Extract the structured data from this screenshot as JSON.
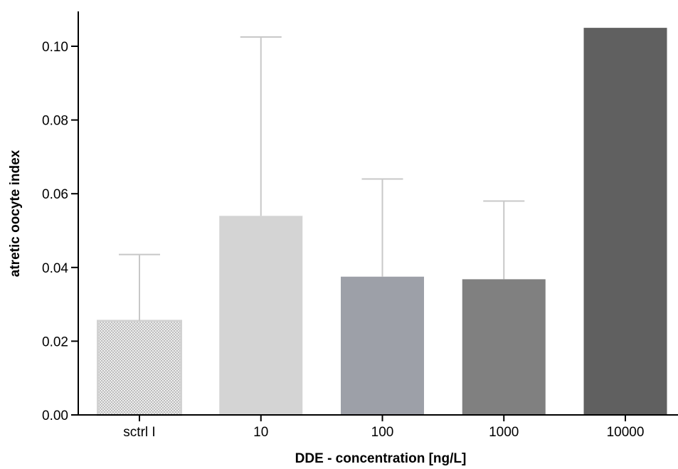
{
  "chart_data": {
    "type": "bar",
    "title": "",
    "xlabel": "DDE - concentration [ng/L]",
    "ylabel": "atretic oocyte index",
    "categories": [
      "sctrl I",
      "10",
      "100",
      "1000",
      "10000"
    ],
    "values": [
      0.0255,
      0.054,
      0.0375,
      0.0368,
      0.105
    ],
    "error_upper": [
      0.0435,
      0.1025,
      0.064,
      0.058,
      null
    ],
    "ylim": [
      0,
      0.11
    ],
    "yticks": [
      "0.00",
      "0.02",
      "0.04",
      "0.06",
      "0.08",
      "0.10"
    ],
    "grid": false,
    "legend": "none",
    "bar_colors": [
      "#e1e1e1",
      "#d4d4d4",
      "#9da0a8",
      "#808080",
      "#606060"
    ],
    "error_bar_color": "#c8c8c8"
  }
}
